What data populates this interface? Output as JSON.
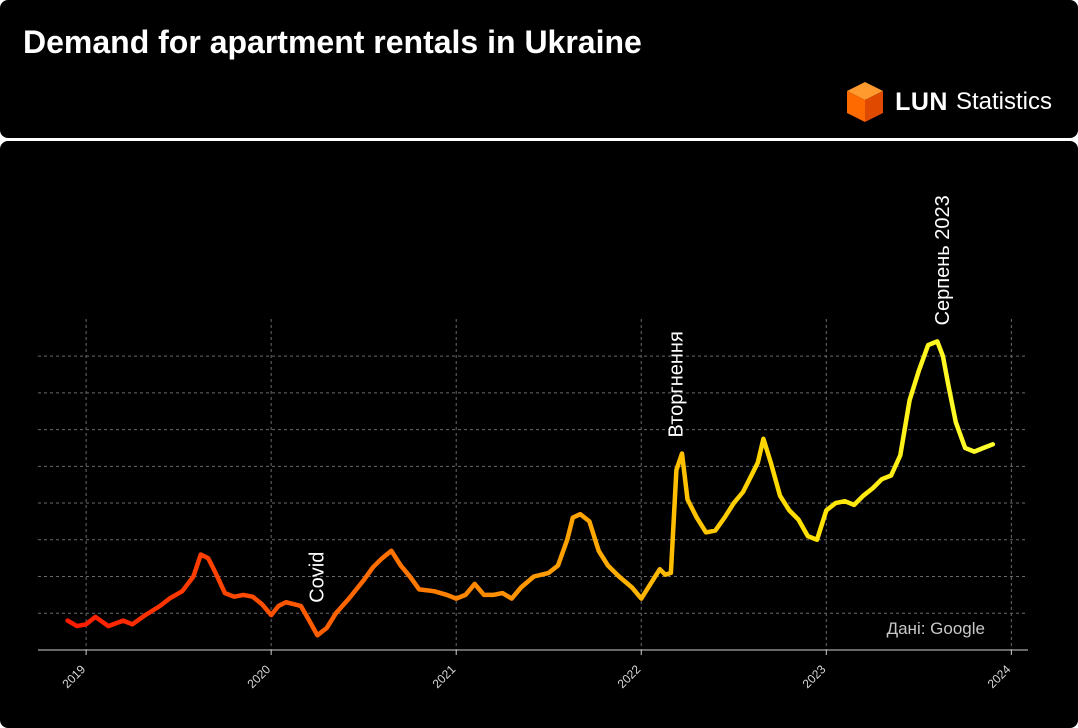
{
  "header": {
    "title": "Demand for apartment rentals in Ukraine",
    "logo_brand": "LUN",
    "logo_sub": "Statistics"
  },
  "chart_data": {
    "type": "line",
    "title": "Demand for apartment rentals in Ukraine",
    "xlabel": "",
    "ylabel": "",
    "x_ticks": [
      "2019",
      "2020",
      "2021",
      "2022",
      "2023",
      "2024"
    ],
    "xlim": [
      2018.74,
      2024.09
    ],
    "ylim": [
      0,
      95
    ],
    "y_gridlines": [
      10,
      20,
      30,
      40,
      50,
      60,
      70,
      80
    ],
    "grid": true,
    "source": "Дані: Google",
    "gradient_colors": [
      "#ff1a00",
      "#ff8a00",
      "#ffe000",
      "#ffff2e"
    ],
    "annotations": [
      {
        "label": "Covid",
        "x": 2020.25
      },
      {
        "label": "Вторгнення",
        "x": 2022.19
      },
      {
        "label": "Серпень 2023",
        "x": 2023.63
      }
    ],
    "series": [
      {
        "x": [
          2018.9,
          2018.95,
          2019.0,
          2019.05,
          2019.12,
          2019.2,
          2019.25,
          2019.32,
          2019.4,
          2019.45,
          2019.52,
          2019.58,
          2019.62,
          2019.66,
          2019.7,
          2019.75,
          2019.8,
          2019.85,
          2019.9,
          2019.95,
          2020.0,
          2020.04,
          2020.08,
          2020.12,
          2020.16,
          2020.2,
          2020.25,
          2020.3,
          2020.35,
          2020.42,
          2020.5,
          2020.55,
          2020.6,
          2020.65,
          2020.7,
          2020.75,
          2020.8,
          2020.88,
          2020.95,
          2021.0,
          2021.05,
          2021.1,
          2021.15,
          2021.2,
          2021.25,
          2021.3,
          2021.35,
          2021.42,
          2021.5,
          2021.55,
          2021.6,
          2021.63,
          2021.67,
          2021.72,
          2021.77,
          2021.82,
          2021.88,
          2021.95,
          2022.0,
          2022.05,
          2022.1,
          2022.13,
          2022.16,
          2022.19,
          2022.22,
          2022.25,
          2022.3,
          2022.35,
          2022.4,
          2022.45,
          2022.5,
          2022.55,
          2022.6,
          2022.63,
          2022.66,
          2022.7,
          2022.75,
          2022.8,
          2022.85,
          2022.9,
          2022.95,
          2023.0,
          2023.05,
          2023.1,
          2023.15,
          2023.2,
          2023.25,
          2023.3,
          2023.35,
          2023.4,
          2023.45,
          2023.5,
          2023.55,
          2023.6,
          2023.63,
          2023.66,
          2023.7,
          2023.75,
          2023.8,
          2023.85,
          2023.9
        ],
        "y": [
          8,
          6.5,
          7,
          9,
          6.5,
          8,
          7,
          9.5,
          12,
          14,
          16,
          20,
          26,
          25,
          21,
          15.5,
          14.5,
          15,
          14.5,
          12.5,
          9.5,
          12,
          13,
          12.5,
          12,
          8.5,
          4,
          6,
          10,
          14,
          19,
          22.5,
          25,
          27,
          23,
          20,
          16.5,
          16,
          15,
          14,
          15,
          18,
          15,
          15,
          15.5,
          14,
          17,
          20,
          21,
          23,
          30,
          36,
          37,
          35,
          27,
          23,
          20,
          17,
          14,
          18,
          22,
          20.5,
          21,
          49,
          53.5,
          41,
          36,
          32,
          32.5,
          36,
          40,
          43,
          48,
          51,
          57.5,
          51,
          42,
          38,
          35.5,
          31,
          30,
          38,
          40,
          40.5,
          39.5,
          42,
          44,
          46.5,
          47.5,
          53,
          68,
          76,
          83,
          84,
          80,
          72,
          62,
          55,
          54,
          55,
          56
        ]
      }
    ]
  }
}
